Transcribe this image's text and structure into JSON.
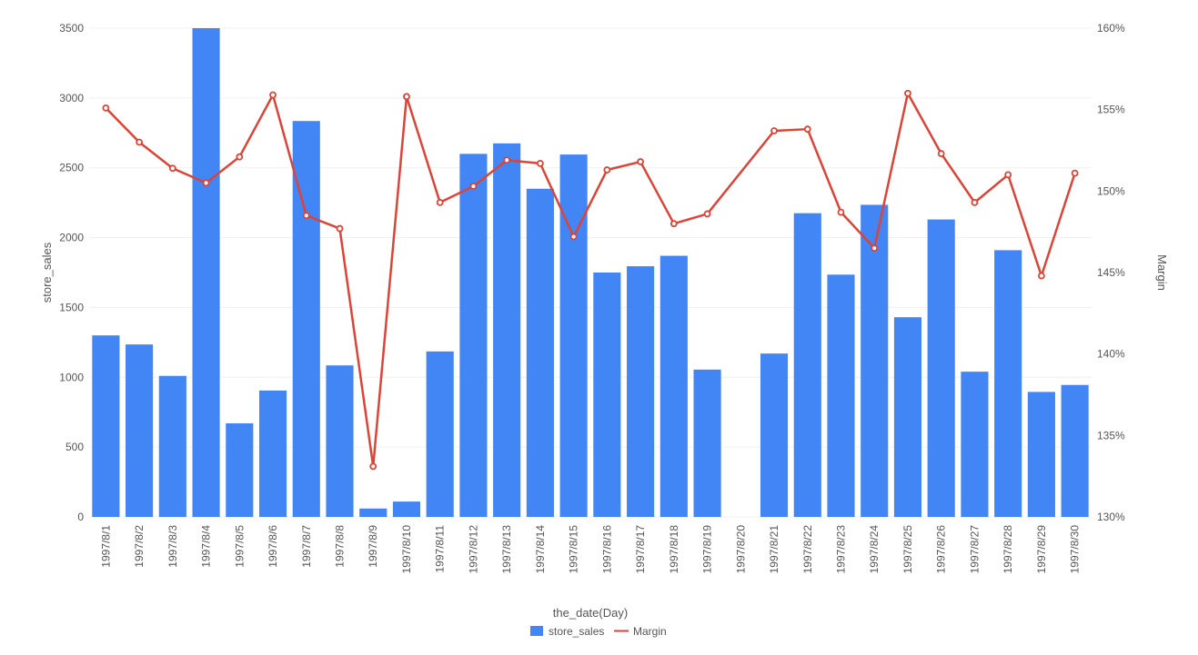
{
  "chart_data": {
    "type": "bar",
    "xlabel": "the_date(Day)",
    "ylabel_left": "store_sales",
    "ylabel_right": "Margin",
    "ylim_left": [
      0,
      3500
    ],
    "ylim_right": [
      1.3,
      1.6
    ],
    "left_ticks": [
      0,
      500,
      1000,
      1500,
      2000,
      2500,
      3000,
      3500
    ],
    "left_tick_labels": [
      "0",
      "500",
      "1000",
      "1500",
      "2000",
      "2500",
      "3000",
      "3500"
    ],
    "right_ticks": [
      1.3,
      1.35,
      1.4,
      1.45,
      1.5,
      1.55,
      1.6
    ],
    "right_tick_labels": [
      "130%",
      "135%",
      "140%",
      "145%",
      "150%",
      "155%",
      "160%"
    ],
    "grid": true,
    "legend_position": "bottom-center",
    "categories": [
      "1997/8/1",
      "1997/8/2",
      "1997/8/3",
      "1997/8/4",
      "1997/8/5",
      "1997/8/6",
      "1997/8/7",
      "1997/8/8",
      "1997/8/9",
      "1997/8/10",
      "1997/8/11",
      "1997/8/12",
      "1997/8/13",
      "1997/8/14",
      "1997/8/15",
      "1997/8/16",
      "1997/8/17",
      "1997/8/18",
      "1997/8/19",
      "1997/8/20",
      "1997/8/21",
      "1997/8/22",
      "1997/8/23",
      "1997/8/24",
      "1997/8/25",
      "1997/8/26",
      "1997/8/27",
      "1997/8/28",
      "1997/8/29",
      "1997/8/30"
    ],
    "series": [
      {
        "name": "store_sales",
        "type": "bar",
        "axis": "left",
        "color": "#4285f4",
        "values": [
          1300,
          1235,
          1010,
          3500,
          670,
          905,
          2835,
          1085,
          60,
          110,
          1185,
          2600,
          2675,
          2350,
          2595,
          1750,
          1795,
          1870,
          1055,
          null,
          1170,
          2175,
          1735,
          2235,
          1430,
          2130,
          1040,
          1910,
          895,
          945
        ]
      },
      {
        "name": "Margin",
        "type": "line",
        "axis": "right",
        "color": "#db4437",
        "values": [
          1.551,
          1.53,
          1.514,
          1.505,
          1.521,
          1.559,
          1.485,
          1.477,
          1.331,
          1.558,
          1.493,
          1.503,
          1.519,
          1.517,
          1.472,
          1.513,
          1.518,
          1.48,
          1.486,
          null,
          1.537,
          1.538,
          1.487,
          1.465,
          1.56,
          1.523,
          1.493,
          1.51,
          1.448,
          1.511
        ]
      }
    ]
  }
}
